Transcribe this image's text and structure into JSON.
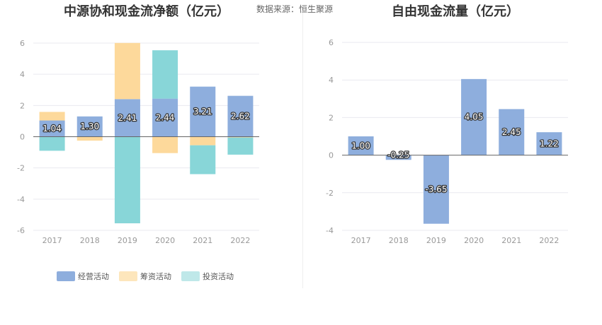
{
  "source": "数据来源：恒生聚源",
  "colors": {
    "operating": "#8eaedd",
    "financing": "#fdd99b",
    "investing": "#88d6d8",
    "axis": "#666666",
    "grid": "#e9e9ef"
  },
  "legend": [
    "经营活动",
    "筹资活动",
    "投资活动"
  ],
  "chart_data": [
    {
      "type": "bar",
      "stacked": true,
      "title": "中源协和现金流净额（亿元）",
      "categories": [
        "2017",
        "2018",
        "2019",
        "2020",
        "2021",
        "2022"
      ],
      "yticks": [
        "6",
        "4",
        "2",
        "0",
        "-2",
        "-4",
        "-6"
      ],
      "ylim": [
        -6,
        6
      ],
      "series": [
        {
          "name": "经营活动",
          "values": [
            1.04,
            1.3,
            2.41,
            2.44,
            3.21,
            2.62
          ]
        },
        {
          "name": "筹资活动",
          "values": [
            0.55,
            -0.25,
            3.6,
            -1.05,
            -0.55,
            -0.05
          ]
        },
        {
          "name": "投资活动",
          "values": [
            -0.9,
            0,
            -5.55,
            3.1,
            -1.85,
            -1.1
          ]
        }
      ],
      "data_labels": [
        "1.04",
        "1.30",
        "2.41",
        "2.44",
        "3.21",
        "2.62"
      ],
      "grid": true,
      "legend_position": "bottom"
    },
    {
      "type": "bar",
      "title": "自由现金流量（亿元）",
      "categories": [
        "2017",
        "2018",
        "2019",
        "2020",
        "2021",
        "2022"
      ],
      "yticks": [
        "6",
        "4",
        "2",
        "0",
        "-2",
        "-4"
      ],
      "ylim": [
        -4,
        6
      ],
      "values": [
        1.0,
        -0.25,
        -3.65,
        4.05,
        2.45,
        1.22
      ],
      "data_labels": [
        "1.00",
        "-0.25",
        "-3.65",
        "4.05",
        "2.45",
        "1.22"
      ],
      "grid": true
    }
  ]
}
